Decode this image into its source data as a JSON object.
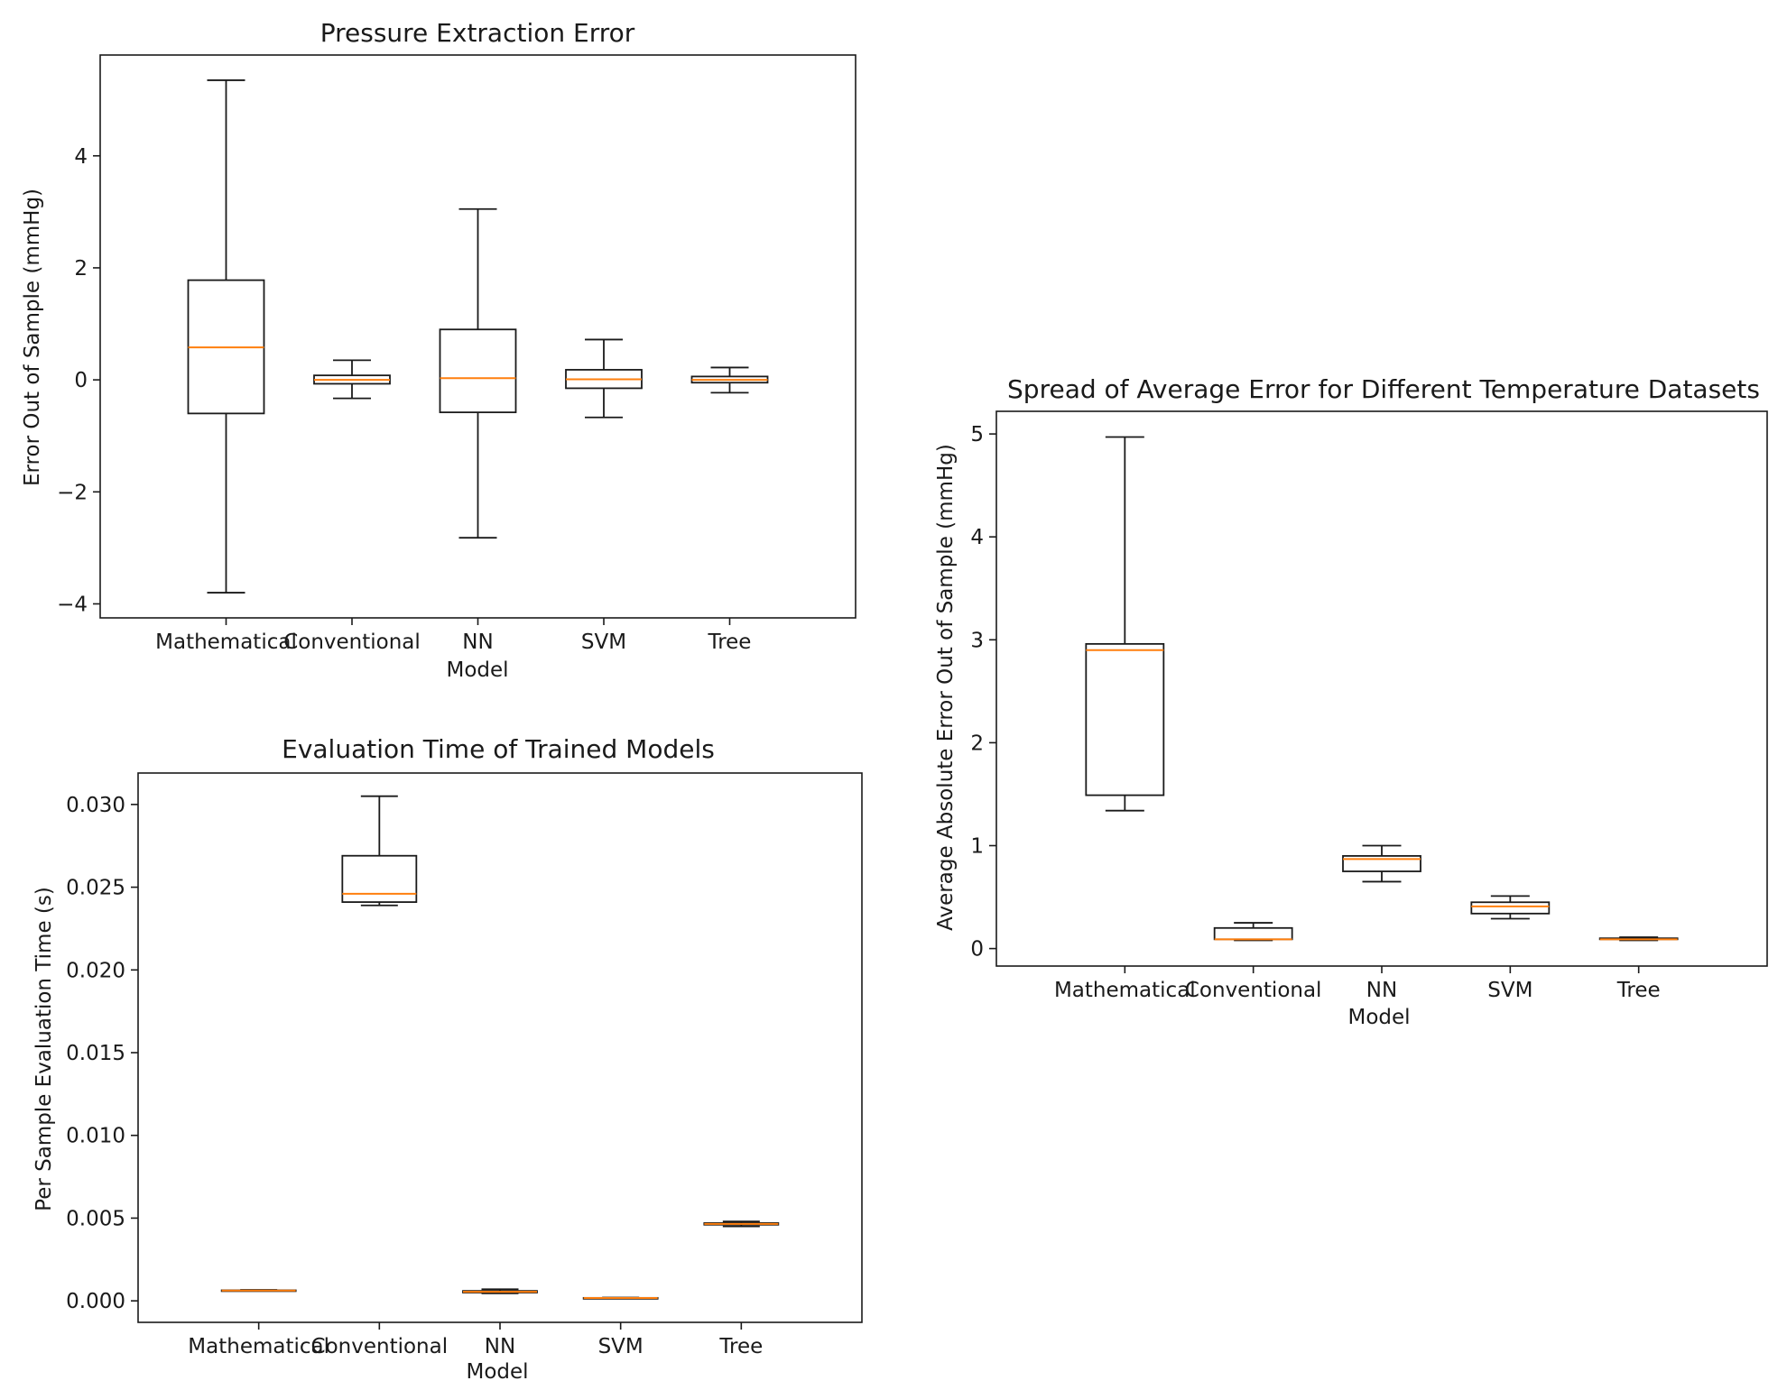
{
  "chart_data": [
    {
      "type": "box",
      "title": "Pressure Extraction Error",
      "xlabel": "Model",
      "ylabel": "Error Out of Sample (mmHg)",
      "categories": [
        "Mathematical",
        "Conventional",
        "NN",
        "SVM",
        "Tree"
      ],
      "ylim": [
        -4.25,
        5.8
      ],
      "yticks": [
        -4,
        -2,
        0,
        2,
        4
      ],
      "yticklabels": [
        "−4",
        "−2",
        "0",
        "2",
        "4"
      ],
      "boxes": [
        {
          "whislo": -3.8,
          "q1": -0.6,
          "med": 0.58,
          "q3": 1.78,
          "whishi": 5.35
        },
        {
          "whislo": -0.33,
          "q1": -0.07,
          "med": 0.0,
          "q3": 0.08,
          "whishi": 0.35
        },
        {
          "whislo": -2.82,
          "q1": -0.58,
          "med": 0.03,
          "q3": 0.9,
          "whishi": 3.05
        },
        {
          "whislo": -0.67,
          "q1": -0.15,
          "med": 0.01,
          "q3": 0.18,
          "whishi": 0.72
        },
        {
          "whislo": -0.23,
          "q1": -0.05,
          "med": 0.0,
          "q3": 0.06,
          "whishi": 0.22
        }
      ]
    },
    {
      "type": "box",
      "title": "Spread of Average Error for Different Temperature Datasets",
      "xlabel": "Model",
      "ylabel": "Average Absolute Error Out of Sample (mmHg)",
      "categories": [
        "Mathematical",
        "Conventional",
        "NN",
        "SVM",
        "Tree"
      ],
      "ylim": [
        -0.17,
        5.22
      ],
      "yticks": [
        0,
        1,
        2,
        3,
        4,
        5
      ],
      "yticklabels": [
        "0",
        "1",
        "2",
        "3",
        "4",
        "5"
      ],
      "boxes": [
        {
          "whislo": 1.34,
          "q1": 1.49,
          "med": 2.9,
          "q3": 2.96,
          "whishi": 4.97
        },
        {
          "whislo": 0.08,
          "q1": 0.09,
          "med": 0.09,
          "q3": 0.2,
          "whishi": 0.25
        },
        {
          "whislo": 0.65,
          "q1": 0.75,
          "med": 0.87,
          "q3": 0.9,
          "whishi": 1.0
        },
        {
          "whislo": 0.29,
          "q1": 0.34,
          "med": 0.41,
          "q3": 0.45,
          "whishi": 0.51
        },
        {
          "whislo": 0.08,
          "q1": 0.09,
          "med": 0.09,
          "q3": 0.1,
          "whishi": 0.11
        }
      ]
    },
    {
      "type": "box",
      "title": "Evaluation Time of Trained Models",
      "xlabel": "Model",
      "ylabel": "Per Sample Evaluation Time (s)",
      "categories": [
        "Mathematical",
        "Conventional",
        "NN",
        "SVM",
        "Tree"
      ],
      "ylim": [
        -0.0013,
        0.0319
      ],
      "yticks": [
        0.0,
        0.005,
        0.01,
        0.015,
        0.02,
        0.025,
        0.03
      ],
      "yticklabels": [
        "0.000",
        "0.005",
        "0.010",
        "0.015",
        "0.020",
        "0.025",
        "0.030"
      ],
      "boxes": [
        {
          "whislo": 0.0006,
          "q1": 0.0006,
          "med": 0.00062,
          "q3": 0.00064,
          "whishi": 0.00066
        },
        {
          "whislo": 0.0239,
          "q1": 0.0241,
          "med": 0.0246,
          "q3": 0.0269,
          "whishi": 0.0305
        },
        {
          "whislo": 0.00045,
          "q1": 0.0005,
          "med": 0.00055,
          "q3": 0.0006,
          "whishi": 0.0007
        },
        {
          "whislo": 0.00015,
          "q1": 0.00016,
          "med": 0.00017,
          "q3": 0.00018,
          "whishi": 0.0002
        },
        {
          "whislo": 0.0045,
          "q1": 0.0046,
          "med": 0.00465,
          "q3": 0.0047,
          "whishi": 0.0048
        }
      ]
    }
  ]
}
